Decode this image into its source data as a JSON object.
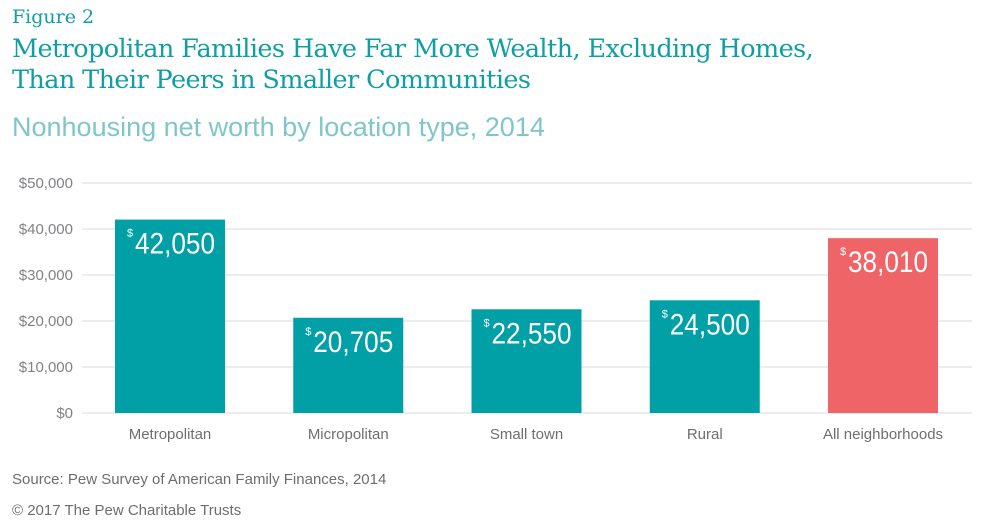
{
  "header": {
    "figure_label": "Figure 2",
    "title_line1": "Metropolitan Families Have Far More Wealth, Excluding Homes,",
    "title_line2": "Than Their Peers in Smaller Communities",
    "subtitle": "Nonhousing net worth by location type, 2014"
  },
  "footer": {
    "source": "Source: Pew Survey of American Family Finances, 2014",
    "copyright": "© 2017 The Pew Charitable Trusts"
  },
  "colors": {
    "primary": "#00a0a6",
    "highlight": "#ef6567",
    "grid": "#d9d9d9",
    "title": "#0f9ea4"
  },
  "chart_data": {
    "type": "bar",
    "title": "Metropolitan Families Have Far More Wealth, Excluding Homes, Than Their Peers in Smaller Communities",
    "subtitle": "Nonhousing net worth by location type, 2014",
    "xlabel": "",
    "ylabel": "",
    "categories": [
      "Metropolitan",
      "Micropolitan",
      "Small town",
      "Rural",
      "All neighborhoods"
    ],
    "values": [
      42050,
      20705,
      22550,
      24500,
      38010
    ],
    "data_labels": [
      "42,050",
      "20,705",
      "22,550",
      "24,500",
      "38,010"
    ],
    "data_label_prefix": "$",
    "highlight_index": 4,
    "ylim": [
      0,
      50000
    ],
    "yticks": [
      0,
      10000,
      20000,
      30000,
      40000,
      50000
    ],
    "ytick_labels": [
      "$0",
      "$10,000",
      "$20,000",
      "$30,000",
      "$40,000",
      "$50,000"
    ],
    "grid": true,
    "legend": "none"
  }
}
